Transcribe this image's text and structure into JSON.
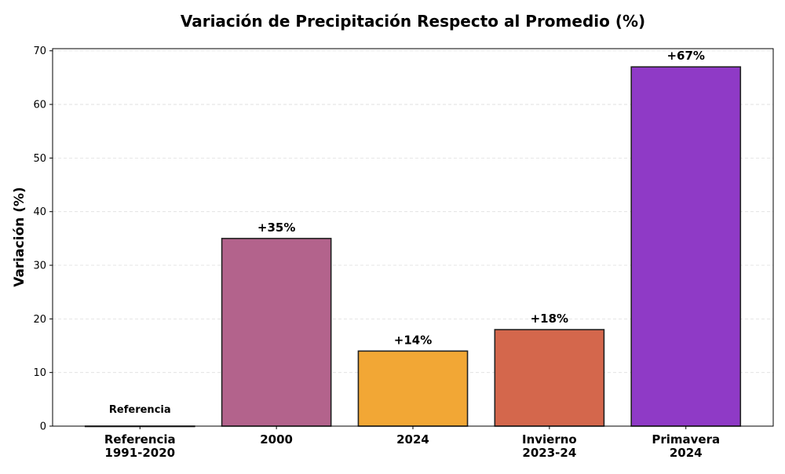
{
  "chart_data": {
    "type": "bar",
    "title": "Variación de Precipitación Respecto al Promedio (%)",
    "xlabel": "",
    "ylabel": "Variación (%)",
    "categories": [
      "Referencia\n1991-2020",
      "2000",
      "2024",
      "Invierno\n2023-24",
      "Primavera\n2024"
    ],
    "values": [
      0,
      35,
      14,
      18,
      67
    ],
    "data_labels": [
      "Referencia",
      "+35%",
      "+14%",
      "+18%",
      "+67%"
    ],
    "colors": [
      "#808080",
      "#b3638c",
      "#f2a735",
      "#d4674c",
      "#8f3ac6"
    ],
    "ylim": [
      0,
      70.4
    ],
    "yticks": [
      0,
      10,
      20,
      30,
      40,
      50,
      60,
      70
    ],
    "grid": true
  }
}
